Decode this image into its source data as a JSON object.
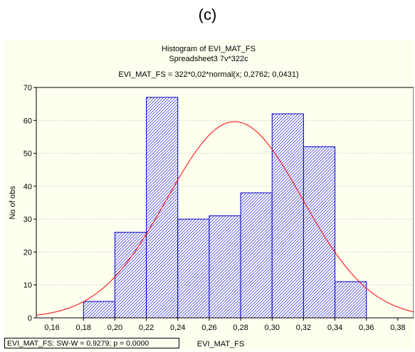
{
  "panel_label": "(c)",
  "chart_data": {
    "type": "bar",
    "title": "Histogram of EVI_MAT_FS",
    "subtitle": "Spreadsheet3 7v*322c",
    "fit_label": "EVI_MAT_FS = 322*0,02*normal(x; 0,2762; 0,0431)",
    "xlabel": "EVI_MAT_FS",
    "ylabel": "No of obs",
    "xlim": [
      0.15,
      0.39
    ],
    "ylim": [
      0,
      70
    ],
    "x_ticks": [
      "0,16",
      "0,18",
      "0,20",
      "0,22",
      "0,24",
      "0,26",
      "0,28",
      "0,30",
      "0,32",
      "0,34",
      "0,36",
      "0,38"
    ],
    "y_ticks": [
      "0",
      "10",
      "20",
      "30",
      "40",
      "50",
      "60",
      "70"
    ],
    "bins": [
      {
        "start": 0.18,
        "end": 0.2,
        "count": 5
      },
      {
        "start": 0.2,
        "end": 0.22,
        "count": 26
      },
      {
        "start": 0.22,
        "end": 0.24,
        "count": 67
      },
      {
        "start": 0.24,
        "end": 0.26,
        "count": 30
      },
      {
        "start": 0.26,
        "end": 0.28,
        "count": 31
      },
      {
        "start": 0.28,
        "end": 0.3,
        "count": 38
      },
      {
        "start": 0.3,
        "end": 0.32,
        "count": 62
      },
      {
        "start": 0.32,
        "end": 0.34,
        "count": 52
      },
      {
        "start": 0.34,
        "end": 0.36,
        "count": 11
      }
    ],
    "normal_fit": {
      "n": 322,
      "bin_width": 0.02,
      "mean": 0.2762,
      "sd": 0.0431
    },
    "bar_color": "#0000cc",
    "curve_color": "#ff0000",
    "background_color": "#fffff0",
    "grid": true,
    "stat_text": "EVI_MAT_FS:  SW-W = 0,9279; p = 0.0000"
  }
}
